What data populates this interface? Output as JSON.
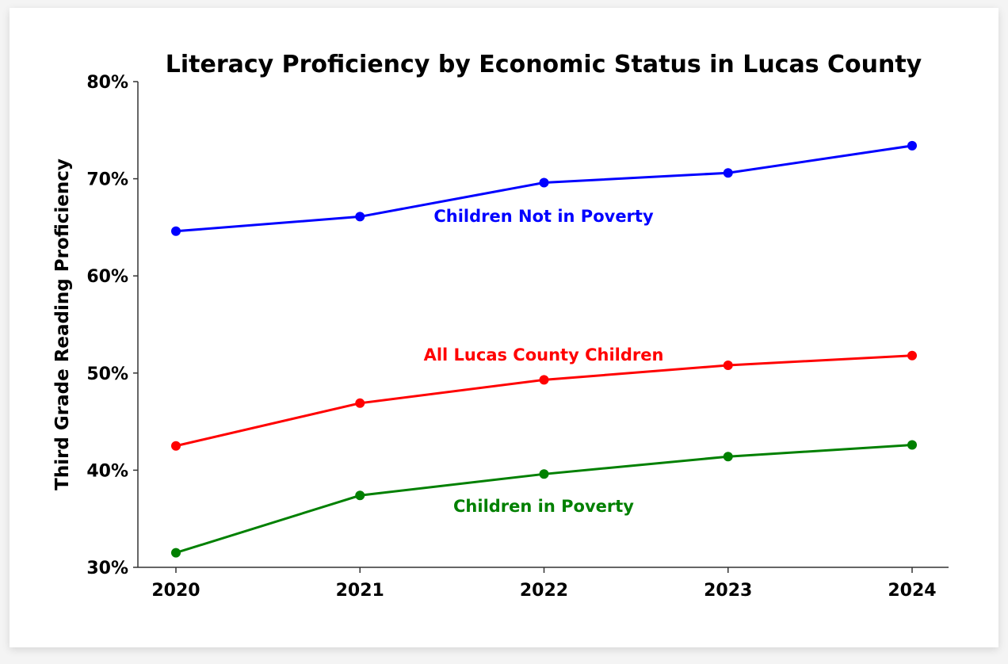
{
  "chart_data": {
    "type": "line",
    "title": "Literacy Proficiency by Economic Status in Lucas County",
    "xlabel": "",
    "ylabel": "Third Grade Reading Proficiency",
    "x": [
      "2020",
      "2021",
      "2022",
      "2023",
      "2024"
    ],
    "ylim": [
      30,
      80
    ],
    "yticks": [
      "30%",
      "40%",
      "50%",
      "60%",
      "70%",
      "80%"
    ],
    "grid": false,
    "legend": "inline labels",
    "series": [
      {
        "name": "Children Not in Poverty",
        "color": "#0000ff",
        "values": [
          64.6,
          66.1,
          69.6,
          70.6,
          73.4
        ]
      },
      {
        "name": "All Lucas County Children",
        "color": "#ff0000",
        "values": [
          42.5,
          46.9,
          49.3,
          50.8,
          51.8
        ]
      },
      {
        "name": "Children in Poverty",
        "color": "#008000",
        "values": [
          31.5,
          37.4,
          39.6,
          41.4,
          42.6
        ]
      }
    ]
  }
}
